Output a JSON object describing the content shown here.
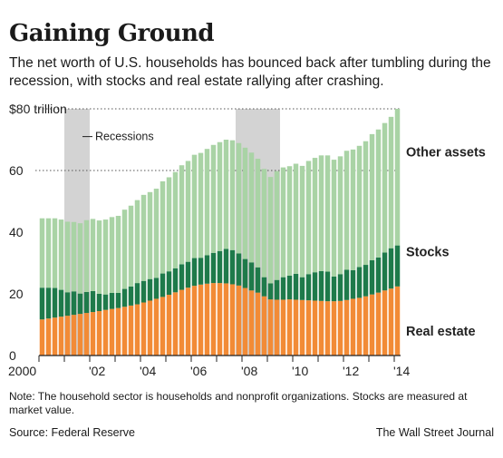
{
  "header": {
    "title": "Gaining Ground",
    "subtitle": "The net worth of U.S. households has bounced back after tumbling during the recession, with stocks and real estate rallying after crashing."
  },
  "footer": {
    "note": "Note: The household sector is households and nonprofit organizations. Stocks are measured at market value.",
    "source": "Source: Federal Reserve",
    "credit": "The Wall Street Journal"
  },
  "colors": {
    "real_estate": "#f28b36",
    "stocks": "#1e7a4a",
    "other_assets": "#a9d3a5",
    "recession": "#d3d3d3"
  },
  "chart_data": {
    "type": "bar",
    "stacked": true,
    "title": "Gaining Ground",
    "xlabel": "",
    "ylabel": "",
    "ylim": [
      0,
      80
    ],
    "y_ticks": [
      0,
      20,
      40,
      60,
      80
    ],
    "y_tick_labels": [
      "0",
      "20",
      "40",
      "60",
      "$80 trillion"
    ],
    "dotted_gridlines": [
      60,
      80
    ],
    "x_ticks": [
      "2000",
      "'02",
      "'04",
      "'06",
      "'08",
      "'10",
      "'12",
      "'14"
    ],
    "categories": [
      "2000Q1",
      "2000Q2",
      "2000Q3",
      "2000Q4",
      "2001Q1",
      "2001Q2",
      "2001Q3",
      "2001Q4",
      "2002Q1",
      "2002Q2",
      "2002Q3",
      "2002Q4",
      "2003Q1",
      "2003Q2",
      "2003Q3",
      "2003Q4",
      "2004Q1",
      "2004Q2",
      "2004Q3",
      "2004Q4",
      "2005Q1",
      "2005Q2",
      "2005Q3",
      "2005Q4",
      "2006Q1",
      "2006Q2",
      "2006Q3",
      "2006Q4",
      "2007Q1",
      "2007Q2",
      "2007Q3",
      "2007Q4",
      "2008Q1",
      "2008Q2",
      "2008Q3",
      "2008Q4",
      "2009Q1",
      "2009Q2",
      "2009Q3",
      "2009Q4",
      "2010Q1",
      "2010Q2",
      "2010Q3",
      "2010Q4",
      "2011Q1",
      "2011Q2",
      "2011Q3",
      "2011Q4",
      "2012Q1",
      "2012Q2",
      "2012Q3",
      "2012Q4",
      "2013Q1",
      "2013Q2",
      "2013Q3",
      "2013Q4",
      "2014Q1"
    ],
    "recessions": [
      {
        "start": "2001Q1",
        "end": "2001Q4",
        "label": "Recessions"
      },
      {
        "start": "2007Q4",
        "end": "2009Q2"
      }
    ],
    "series": [
      {
        "name": "Real estate",
        "color": "#f28b36",
        "values": [
          11.7,
          12.0,
          12.3,
          12.6,
          12.9,
          13.2,
          13.5,
          13.8,
          14.1,
          14.4,
          14.8,
          15.1,
          15.4,
          15.8,
          16.2,
          16.6,
          17.2,
          17.8,
          18.4,
          19.0,
          19.7,
          20.5,
          21.3,
          22.0,
          22.6,
          23.0,
          23.3,
          23.5,
          23.5,
          23.4,
          23.1,
          22.7,
          21.9,
          21.1,
          20.4,
          19.2,
          18.2,
          18.1,
          18.1,
          18.2,
          18.1,
          18.0,
          17.9,
          17.8,
          17.7,
          17.6,
          17.6,
          17.7,
          18.0,
          18.4,
          18.7,
          19.2,
          19.8,
          20.4,
          21.1,
          21.7,
          22.4
        ]
      },
      {
        "name": "Stocks",
        "color": "#1e7a4a",
        "values": [
          10.3,
          10.0,
          9.6,
          8.7,
          7.6,
          7.6,
          6.6,
          6.8,
          6.8,
          5.6,
          5.0,
          5.2,
          4.9,
          5.8,
          6.2,
          6.9,
          7.0,
          7.0,
          6.8,
          7.6,
          7.6,
          7.8,
          8.3,
          8.4,
          9.0,
          8.7,
          9.2,
          9.8,
          10.4,
          11.2,
          11.1,
          10.4,
          9.4,
          9.1,
          8.2,
          6.2,
          5.2,
          6.4,
          7.3,
          7.7,
          8.4,
          7.4,
          8.5,
          9.2,
          9.7,
          9.6,
          8.0,
          8.7,
          9.8,
          9.3,
          10.0,
          10.2,
          11.1,
          11.4,
          12.3,
          13.1,
          13.3
        ]
      },
      {
        "name": "Other assets",
        "color": "#a9d3a5",
        "values": [
          22.5,
          22.5,
          22.6,
          22.8,
          22.9,
          22.5,
          22.8,
          23.3,
          23.4,
          23.8,
          24.3,
          24.6,
          25.0,
          25.7,
          26.2,
          26.9,
          27.9,
          28.2,
          28.9,
          29.9,
          30.5,
          31.2,
          32.1,
          32.7,
          33.5,
          34.0,
          34.5,
          35.0,
          35.3,
          35.4,
          35.6,
          35.8,
          36.1,
          35.6,
          35.2,
          35.1,
          34.5,
          35.3,
          35.6,
          35.5,
          35.7,
          36.1,
          36.7,
          37.1,
          37.5,
          37.7,
          37.9,
          38.2,
          38.6,
          39.1,
          39.3,
          40.1,
          40.9,
          41.5,
          42.0,
          42.6,
          44.3
        ]
      }
    ],
    "series_labels": [
      "Other assets",
      "Stocks",
      "Real estate"
    ],
    "legend_position": "right"
  }
}
